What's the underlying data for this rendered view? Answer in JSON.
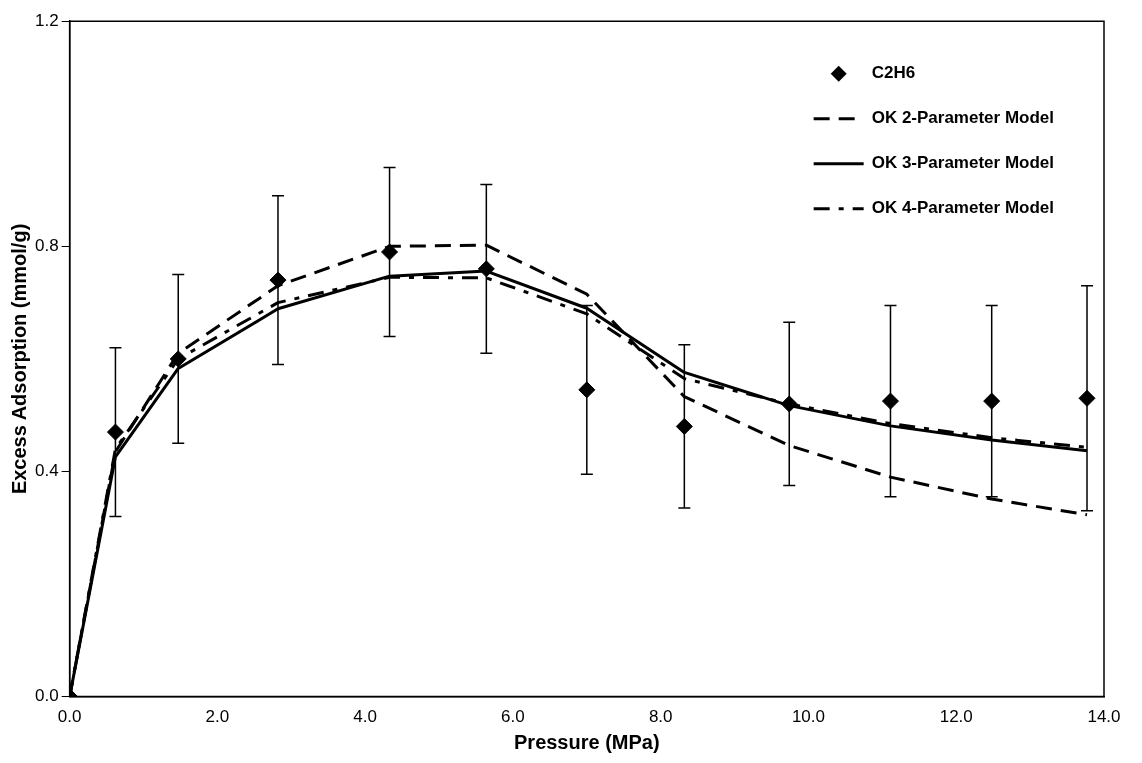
{
  "chart_data": {
    "type": "line",
    "xlabel": "Pressure (MPa)",
    "ylabel": "Excess Adsorption (mmol/g)",
    "xlim": [
      0,
      14
    ],
    "xticks": [
      {
        "value": 0,
        "label": "0.0"
      },
      {
        "value": 2,
        "label": "2.0"
      },
      {
        "value": 4,
        "label": "4.0"
      },
      {
        "value": 6,
        "label": "6.0"
      },
      {
        "value": 8,
        "label": "8.0"
      },
      {
        "value": 10,
        "label": "10.0"
      },
      {
        "value": 12,
        "label": "12.0"
      },
      {
        "value": 14,
        "label": "14.0"
      }
    ],
    "ylim": [
      0,
      1.2
    ],
    "yticks": [
      {
        "value": 0,
        "label": "0.0"
      },
      {
        "value": 0.4,
        "label": "0.4"
      },
      {
        "value": 0.8,
        "label": "0.8"
      },
      {
        "value": 1.2,
        "label": "1.2"
      }
    ],
    "grid": false,
    "legend": "top right",
    "x": [
      0,
      0.62,
      1.47,
      2.82,
      4.33,
      5.64,
      7.0,
      8.32,
      9.74,
      11.11,
      12.48,
      13.77
    ],
    "series": [
      {
        "name": "C2H6",
        "type": "scatter",
        "marker": "diamond",
        "color": "#000000",
        "values": [
          0,
          0.47,
          0.6,
          0.74,
          0.79,
          0.76,
          0.545,
          0.48,
          0.52,
          0.525,
          0.525,
          0.53
        ],
        "errors": [
          null,
          0.15,
          0.15,
          0.15,
          0.15,
          0.15,
          0.15,
          0.145,
          0.145,
          0.17,
          0.17,
          0.2
        ]
      },
      {
        "name": "OK 2-Parameter Model",
        "line_style": "dashed",
        "marker": "none",
        "color": "#000000",
        "values": [
          0,
          0.435,
          0.61,
          0.73,
          0.8,
          0.802,
          0.715,
          0.533,
          0.446,
          0.39,
          0.351,
          0.323
        ]
      },
      {
        "name": "OK 3-Parameter Model",
        "line_style": "solid",
        "marker": "none",
        "color": "#000000",
        "values": [
          0,
          0.426,
          0.583,
          0.689,
          0.747,
          0.756,
          0.69,
          0.576,
          0.517,
          0.481,
          0.456,
          0.437
        ]
      },
      {
        "name": "OK 4-Parameter Model",
        "line_style": "dashdot",
        "marker": "none",
        "color": "#000000",
        "values": [
          0,
          0.44,
          0.6,
          0.7,
          0.745,
          0.744,
          0.68,
          0.565,
          0.52,
          0.485,
          0.46,
          0.443
        ]
      }
    ]
  }
}
